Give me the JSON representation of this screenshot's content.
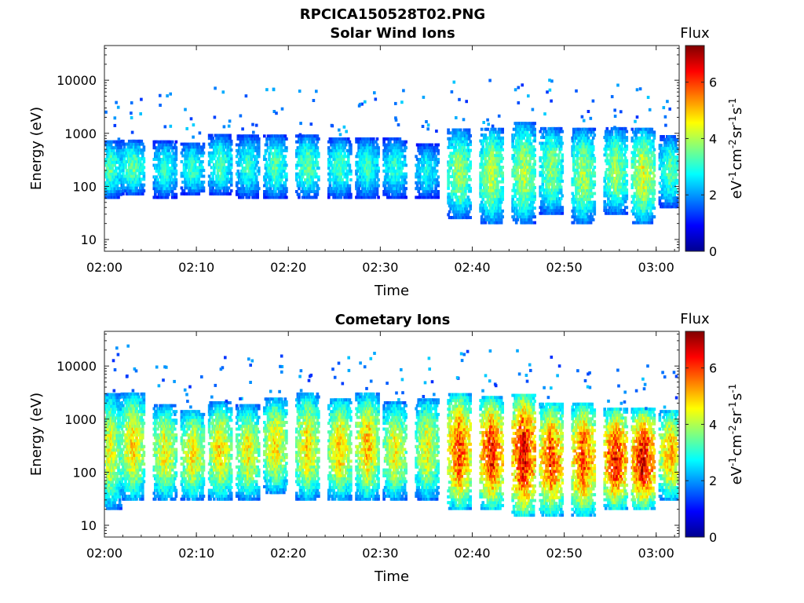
{
  "figure": {
    "title": "RPCICA150528T02.PNG"
  },
  "chart_data": [
    {
      "type": "heatmap",
      "title": "Solar Wind Ions",
      "xlabel": "Time",
      "ylabel": "Energy (eV)",
      "y_scale": "log",
      "ylim": [
        6,
        45000
      ],
      "xlim": [
        "02:00",
        "03:02:30"
      ],
      "x_ticks": [
        "02:00",
        "02:10",
        "02:20",
        "02:30",
        "02:40",
        "02:50",
        "03:00"
      ],
      "y_ticks": [
        "10",
        "100",
        "1000",
        "10000"
      ],
      "colorbar": {
        "title": "Flux",
        "label": "eV-1cm-2sr-1s-1",
        "range": [
          0,
          7.3
        ],
        "ticks": [
          "0",
          "2",
          "4",
          "6"
        ]
      },
      "bursts": [
        {
          "t": "02:00:30",
          "lo": 60,
          "hi": 700,
          "peak": 3.3
        },
        {
          "t": "02:03:00",
          "lo": 70,
          "hi": 700,
          "peak": 3.4
        },
        {
          "t": "02:06:30",
          "lo": 60,
          "hi": 700,
          "peak": 3.0
        },
        {
          "t": "02:09:30",
          "lo": 70,
          "hi": 650,
          "peak": 3.1
        },
        {
          "t": "02:12:30",
          "lo": 70,
          "hi": 900,
          "peak": 3.2
        },
        {
          "t": "02:15:30",
          "lo": 60,
          "hi": 900,
          "peak": 3.0
        },
        {
          "t": "02:18:30",
          "lo": 60,
          "hi": 900,
          "peak": 3.3
        },
        {
          "t": "02:22:00",
          "lo": 60,
          "hi": 900,
          "peak": 3.4
        },
        {
          "t": "02:25:30",
          "lo": 60,
          "hi": 800,
          "peak": 3.2
        },
        {
          "t": "02:28:30",
          "lo": 60,
          "hi": 800,
          "peak": 3.1
        },
        {
          "t": "02:31:30",
          "lo": 60,
          "hi": 800,
          "peak": 3.0
        },
        {
          "t": "02:35:00",
          "lo": 60,
          "hi": 600,
          "peak": 2.8
        },
        {
          "t": "02:38:30",
          "lo": 25,
          "hi": 1200,
          "peak": 3.8
        },
        {
          "t": "02:42:00",
          "lo": 20,
          "hi": 1300,
          "peak": 4.0
        },
        {
          "t": "02:45:30",
          "lo": 20,
          "hi": 1600,
          "peak": 4.0
        },
        {
          "t": "02:48:30",
          "lo": 30,
          "hi": 1300,
          "peak": 3.7
        },
        {
          "t": "02:52:00",
          "lo": 20,
          "hi": 1200,
          "peak": 3.9
        },
        {
          "t": "02:55:30",
          "lo": 30,
          "hi": 1200,
          "peak": 3.8
        },
        {
          "t": "02:58:30",
          "lo": 20,
          "hi": 1200,
          "peak": 4.3
        },
        {
          "t": "03:01:30",
          "lo": 40,
          "hi": 900,
          "peak": 3.3
        }
      ]
    },
    {
      "type": "heatmap",
      "title": "Cometary Ions",
      "xlabel": "Time",
      "ylabel": "Energy (eV)",
      "y_scale": "log",
      "ylim": [
        6,
        45000
      ],
      "xlim": [
        "02:00",
        "03:02:30"
      ],
      "x_ticks": [
        "02:00",
        "02:10",
        "02:20",
        "02:30",
        "02:40",
        "02:50",
        "03:00"
      ],
      "y_ticks": [
        "10",
        "100",
        "1000",
        "10000"
      ],
      "colorbar": {
        "title": "Flux",
        "label": "eV-1cm-2sr-1s-1",
        "range": [
          0,
          7.3
        ],
        "ticks": [
          "0",
          "2",
          "4",
          "6"
        ]
      },
      "bursts": [
        {
          "t": "02:00:30",
          "lo": 20,
          "hi": 3000,
          "peak": 4.3
        },
        {
          "t": "02:03:00",
          "lo": 30,
          "hi": 3000,
          "peak": 4.7
        },
        {
          "t": "02:06:30",
          "lo": 30,
          "hi": 1800,
          "peak": 4.5
        },
        {
          "t": "02:09:30",
          "lo": 30,
          "hi": 1500,
          "peak": 4.6
        },
        {
          "t": "02:12:30",
          "lo": 30,
          "hi": 2000,
          "peak": 4.7
        },
        {
          "t": "02:15:30",
          "lo": 30,
          "hi": 1800,
          "peak": 4.5
        },
        {
          "t": "02:18:30",
          "lo": 40,
          "hi": 2500,
          "peak": 4.6
        },
        {
          "t": "02:22:00",
          "lo": 30,
          "hi": 3000,
          "peak": 4.7
        },
        {
          "t": "02:25:30",
          "lo": 30,
          "hi": 2500,
          "peak": 4.8
        },
        {
          "t": "02:28:30",
          "lo": 30,
          "hi": 3000,
          "peak": 4.9
        },
        {
          "t": "02:31:30",
          "lo": 30,
          "hi": 2000,
          "peak": 4.5
        },
        {
          "t": "02:35:00",
          "lo": 30,
          "hi": 2500,
          "peak": 4.4
        },
        {
          "t": "02:38:30",
          "lo": 20,
          "hi": 3000,
          "peak": 5.8
        },
        {
          "t": "02:42:00",
          "lo": 20,
          "hi": 2500,
          "peak": 6.1
        },
        {
          "t": "02:45:30",
          "lo": 15,
          "hi": 3000,
          "peak": 6.4
        },
        {
          "t": "02:48:30",
          "lo": 15,
          "hi": 2000,
          "peak": 5.8
        },
        {
          "t": "02:52:00",
          "lo": 15,
          "hi": 2000,
          "peak": 5.8
        },
        {
          "t": "02:55:30",
          "lo": 20,
          "hi": 1500,
          "peak": 6.2
        },
        {
          "t": "02:58:30",
          "lo": 20,
          "hi": 1500,
          "peak": 6.5
        },
        {
          "t": "03:01:30",
          "lo": 30,
          "hi": 1500,
          "peak": 5.0
        }
      ]
    }
  ]
}
